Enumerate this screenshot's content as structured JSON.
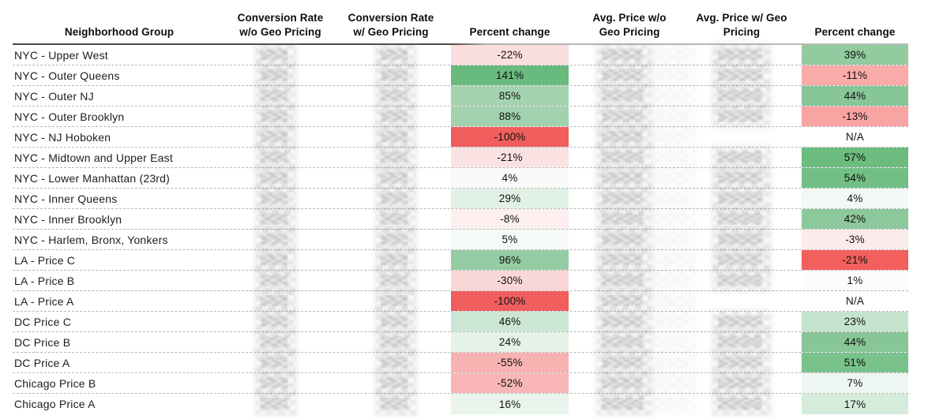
{
  "table": {
    "headers": {
      "neighborhood": "Neighborhood Group",
      "conv_wo_l1": "Conversion Rate",
      "conv_wo_l2": "w/o Geo Pricing",
      "conv_w_l1": "Conversion Rate",
      "conv_w_l2": "w/ Geo Pricing",
      "pct1": "Percent change",
      "price_wo_l1": "Avg. Price w/o",
      "price_wo_l2": "Geo Pricing",
      "price_w_l1": "Avg. Price w/ Geo",
      "price_w_l2": "Pricing",
      "pct2": "Percent change"
    },
    "rows": [
      {
        "name": "NYC - Upper West",
        "conversion_wo": "redacted",
        "conversion_w": "redacted",
        "pct1": "-22%",
        "pct1_color": "#fbdede",
        "price_wo": "redacted",
        "price_w": "redacted",
        "pct2": "39%",
        "pct2_color": "#92cb9f"
      },
      {
        "name": "NYC - Outer Queens",
        "conversion_wo": "redacted",
        "conversion_w": "redacted",
        "pct1": "141%",
        "pct1_color": "#69ba7d",
        "price_wo": "redacted",
        "price_w": "redacted",
        "pct2": "-11%",
        "pct2_color": "#f9abaa"
      },
      {
        "name": "NYC - Outer NJ",
        "conversion_wo": "redacted",
        "conversion_w": "redacted",
        "pct1": "85%",
        "pct1_color": "#a4d4af",
        "price_wo": "redacted",
        "price_w": "redacted",
        "pct2": "44%",
        "pct2_color": "#87c697"
      },
      {
        "name": "NYC - Outer Brooklyn",
        "conversion_wo": "redacted",
        "conversion_w": "redacted",
        "pct1": "88%",
        "pct1_color": "#a1d2ad",
        "price_wo": "redacted",
        "price_w": "redacted",
        "pct2": "-13%",
        "pct2_color": "#f8a4a3"
      },
      {
        "name": "NYC - NJ Hoboken",
        "conversion_wo": "redacted",
        "conversion_w": "redacted",
        "pct1": "-100%",
        "pct1_color": "#f15e5d",
        "price_wo": "redacted",
        "price_w": null,
        "pct2": "N/A",
        "pct2_color": "#ffffff"
      },
      {
        "name": "NYC - Midtown and Upper East",
        "conversion_wo": "redacted",
        "conversion_w": "redacted",
        "pct1": "-21%",
        "pct1_color": "#fbe2e2",
        "price_wo": "redacted",
        "price_w": "redacted",
        "pct2": "57%",
        "pct2_color": "#6cbc80"
      },
      {
        "name": "NYC - Lower Manhattan (23rd)",
        "conversion_wo": "redacted",
        "conversion_w": "redacted",
        "pct1": "4%",
        "pct1_color": "#f8fbf9",
        "price_wo": "redacted",
        "price_w": "redacted",
        "pct2": "54%",
        "pct2_color": "#72bf85"
      },
      {
        "name": "NYC - Inner Queens",
        "conversion_wo": "redacted",
        "conversion_w": "redacted",
        "pct1": "29%",
        "pct1_color": "#e1f1e5",
        "price_wo": "redacted",
        "price_w": "redacted",
        "pct2": "4%",
        "pct2_color": "#f2f8f4"
      },
      {
        "name": "NYC - Inner Brooklyn",
        "conversion_wo": "redacted",
        "conversion_w": "redacted",
        "pct1": "-8%",
        "pct1_color": "#fdefef",
        "price_wo": "redacted",
        "price_w": "redacted",
        "pct2": "42%",
        "pct2_color": "#8cc89b"
      },
      {
        "name": "NYC - Harlem, Bronx, Yonkers",
        "conversion_wo": "redacted",
        "conversion_w": "redacted",
        "pct1": "5%",
        "pct1_color": "#f6faf7",
        "price_wo": "redacted",
        "price_w": "redacted",
        "pct2": "-3%",
        "pct2_color": "#fcebeb"
      },
      {
        "name": "LA - Price C",
        "conversion_wo": "redacted",
        "conversion_w": "redacted",
        "pct1": "96%",
        "pct1_color": "#95cca3",
        "price_wo": "redacted",
        "price_w": "redacted",
        "pct2": "-21%",
        "pct2_color": "#f25f5c"
      },
      {
        "name": "LA - Price B",
        "conversion_wo": "redacted",
        "conversion_w": "redacted",
        "pct1": "-30%",
        "pct1_color": "#fad7d7",
        "price_wo": "redacted",
        "price_w": "redacted",
        "pct2": "1%",
        "pct2_color": "#fbfdfc"
      },
      {
        "name": "LA - Price A",
        "conversion_wo": "redacted",
        "conversion_w": "redacted",
        "pct1": "-100%",
        "pct1_color": "#f15e5d",
        "price_wo": "redacted",
        "price_w": null,
        "pct2": "N/A",
        "pct2_color": "#ffffff"
      },
      {
        "name": "DC Price C",
        "conversion_wo": "redacted",
        "conversion_w": "redacted",
        "pct1": "46%",
        "pct1_color": "#cbe7d3",
        "price_wo": "redacted",
        "price_w": "redacted",
        "pct2": "23%",
        "pct2_color": "#c5e4ce"
      },
      {
        "name": "DC Price B",
        "conversion_wo": "redacted",
        "conversion_w": "redacted",
        "pct1": "24%",
        "pct1_color": "#e4f2e8",
        "price_wo": "redacted",
        "price_w": "redacted",
        "pct2": "44%",
        "pct2_color": "#87c697"
      },
      {
        "name": "DC Price A",
        "conversion_wo": "redacted",
        "conversion_w": "redacted",
        "pct1": "-55%",
        "pct1_color": "#f7b3b2",
        "price_wo": "redacted",
        "price_w": "redacted",
        "pct2": "51%",
        "pct2_color": "#79c28b"
      },
      {
        "name": "Chicago Price B",
        "conversion_wo": "redacted",
        "conversion_w": "redacted",
        "pct1": "-52%",
        "pct1_color": "#f8b7b6",
        "price_wo": "redacted",
        "price_w": "redacted",
        "pct2": "7%",
        "pct2_color": "#edf6f0"
      },
      {
        "name": "Chicago Price A",
        "conversion_wo": "redacted",
        "conversion_w": "redacted",
        "pct1": "16%",
        "pct1_color": "#e9f5ec",
        "price_wo": "redacted",
        "price_w": "redacted",
        "pct2": "17%",
        "pct2_color": "#d5ecdb"
      }
    ]
  },
  "colors": {
    "positive_strong": "#69ba7d",
    "negative_strong": "#f15e5d",
    "row_separator": "#b6b6b6",
    "header_rule_left": "#4a4a4a",
    "header_rule_right": "#bcbcbc",
    "text": "#101010"
  },
  "chart_data": {
    "type": "table",
    "columns": [
      "Neighborhood Group",
      "Conversion Rate w/o Geo Pricing",
      "Conversion Rate w/ Geo Pricing",
      "Percent change",
      "Avg. Price w/o Geo Pricing",
      "Avg. Price w/ Geo Pricing",
      "Percent change"
    ],
    "note_redacted_columns": "Conversion rate and average price value cells are pixelated/redacted in the source image; represented as null",
    "rows": [
      [
        "NYC - Upper West",
        null,
        null,
        "-22%",
        null,
        null,
        "39%"
      ],
      [
        "NYC - Outer Queens",
        null,
        null,
        "141%",
        null,
        null,
        "-11%"
      ],
      [
        "NYC - Outer NJ",
        null,
        null,
        "85%",
        null,
        null,
        "44%"
      ],
      [
        "NYC - Outer Brooklyn",
        null,
        null,
        "88%",
        null,
        null,
        "-13%"
      ],
      [
        "NYC - NJ Hoboken",
        null,
        null,
        "-100%",
        null,
        null,
        "N/A"
      ],
      [
        "NYC - Midtown and Upper East",
        null,
        null,
        "-21%",
        null,
        null,
        "57%"
      ],
      [
        "NYC - Lower Manhattan (23rd)",
        null,
        null,
        "4%",
        null,
        null,
        "54%"
      ],
      [
        "NYC - Inner Queens",
        null,
        null,
        "29%",
        null,
        null,
        "4%"
      ],
      [
        "NYC - Inner Brooklyn",
        null,
        null,
        "-8%",
        null,
        null,
        "42%"
      ],
      [
        "NYC - Harlem, Bronx, Yonkers",
        null,
        null,
        "5%",
        null,
        null,
        "-3%"
      ],
      [
        "LA - Price C",
        null,
        null,
        "96%",
        null,
        null,
        "-21%"
      ],
      [
        "LA - Price B",
        null,
        null,
        "-30%",
        null,
        null,
        "1%"
      ],
      [
        "LA - Price A",
        null,
        null,
        "-100%",
        null,
        null,
        "N/A"
      ],
      [
        "DC Price C",
        null,
        null,
        "46%",
        null,
        null,
        "23%"
      ],
      [
        "DC Price B",
        null,
        null,
        "24%",
        null,
        null,
        "44%"
      ],
      [
        "DC Price A",
        null,
        null,
        "-55%",
        null,
        null,
        "51%"
      ],
      [
        "Chicago Price B",
        null,
        null,
        "-52%",
        null,
        null,
        "7%"
      ],
      [
        "Chicago Price A",
        null,
        null,
        "16%",
        null,
        null,
        "17%"
      ]
    ]
  }
}
